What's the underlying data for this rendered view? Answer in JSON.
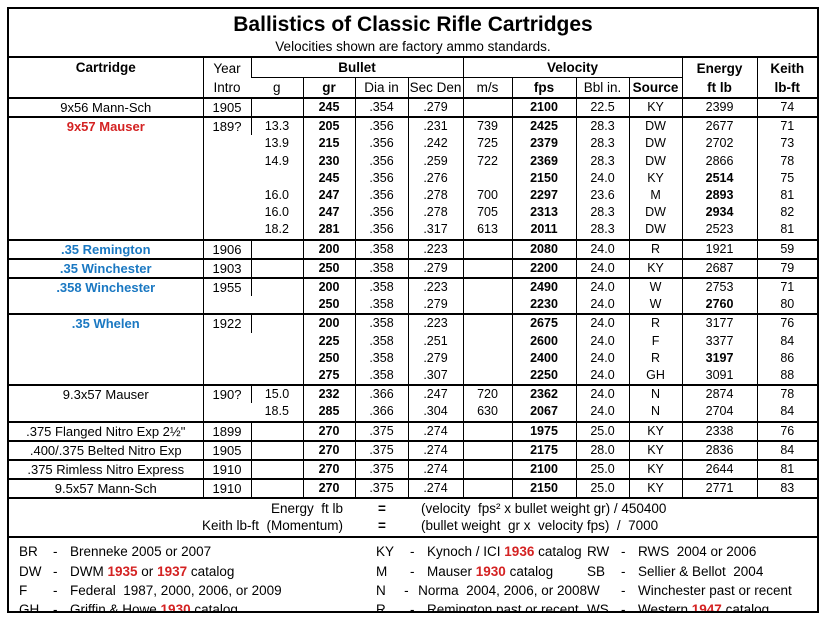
{
  "title": "Ballistics of Classic Rifle Cartridges",
  "subtitle": "Velocities shown are factory ammo standards.",
  "colors": {
    "red": "#d42222",
    "blue": "#1a78c2"
  },
  "columns": {
    "cartridge": "Cartridge",
    "year_line1": "Year",
    "year_line2": "Intro",
    "bullet_group": "Bullet",
    "velocity_group": "Velocity",
    "g": "g",
    "gr": "gr",
    "dia": "Dia in",
    "sec_den": "Sec Den",
    "ms": "m/s",
    "fps": "fps",
    "bbl": "Bbl in.",
    "source": "Source",
    "energy_line1": "Energy",
    "energy_line2": "ft lb",
    "keith_line1": "Keith",
    "keith_line2": "lb-ft"
  },
  "groups": [
    {
      "name": "9x56 Mann-Sch",
      "year": "1905",
      "style": "plain",
      "rows": [
        {
          "g": "",
          "gr": "245",
          "dia": ".354",
          "sd": ".279",
          "ms": "",
          "fps": "2100",
          "bbl": "22.5",
          "src": "KY",
          "en": "2399",
          "enb": false,
          "k": "74"
        }
      ]
    },
    {
      "name": "9x57 Mauser",
      "year": "189?",
      "style": "red",
      "rows": [
        {
          "g": "13.3",
          "gr": "205",
          "dia": ".356",
          "sd": ".231",
          "ms": "739",
          "fps": "2425",
          "bbl": "28.3",
          "src": "DW",
          "en": "2677",
          "enb": false,
          "k": "71"
        },
        {
          "g": "13.9",
          "gr": "215",
          "dia": ".356",
          "sd": ".242",
          "ms": "725",
          "fps": "2379",
          "bbl": "28.3",
          "src": "DW",
          "en": "2702",
          "enb": false,
          "k": "73"
        },
        {
          "g": "14.9",
          "gr": "230",
          "dia": ".356",
          "sd": ".259",
          "ms": "722",
          "fps": "2369",
          "bbl": "28.3",
          "src": "DW",
          "en": "2866",
          "enb": false,
          "k": "78"
        },
        {
          "g": "",
          "gr": "245",
          "dia": ".356",
          "sd": ".276",
          "ms": "",
          "fps": "2150",
          "bbl": "24.0",
          "src": "KY",
          "en": "2514",
          "enb": true,
          "k": "75"
        },
        {
          "g": "16.0",
          "gr": "247",
          "dia": ".356",
          "sd": ".278",
          "ms": "700",
          "fps": "2297",
          "bbl": "23.6",
          "src": "M",
          "en": "2893",
          "enb": true,
          "k": "81"
        },
        {
          "g": "16.0",
          "gr": "247",
          "dia": ".356",
          "sd": ".278",
          "ms": "705",
          "fps": "2313",
          "bbl": "28.3",
          "src": "DW",
          "en": "2934",
          "enb": true,
          "k": "82"
        },
        {
          "g": "18.2",
          "gr": "281",
          "dia": ".356",
          "sd": ".317",
          "ms": "613",
          "fps": "2011",
          "bbl": "28.3",
          "src": "DW",
          "en": "2523",
          "enb": false,
          "k": "81"
        }
      ]
    },
    {
      "name": ".35 Remington",
      "year": "1906",
      "style": "blue",
      "rows": [
        {
          "g": "",
          "gr": "200",
          "dia": ".358",
          "sd": ".223",
          "ms": "",
          "fps": "2080",
          "bbl": "24.0",
          "src": "R",
          "en": "1921",
          "enb": false,
          "k": "59"
        }
      ]
    },
    {
      "name": ".35 Winchester",
      "year": "1903",
      "style": "blue",
      "rows": [
        {
          "g": "",
          "gr": "250",
          "dia": ".358",
          "sd": ".279",
          "ms": "",
          "fps": "2200",
          "bbl": "24.0",
          "src": "KY",
          "en": "2687",
          "enb": false,
          "k": "79"
        }
      ]
    },
    {
      "name": ".358 Winchester",
      "year": "1955",
      "style": "blue",
      "rows": [
        {
          "g": "",
          "gr": "200",
          "dia": ".358",
          "sd": ".223",
          "ms": "",
          "fps": "2490",
          "bbl": "24.0",
          "src": "W",
          "en": "2753",
          "enb": false,
          "k": "71"
        },
        {
          "g": "",
          "gr": "250",
          "dia": ".358",
          "sd": ".279",
          "ms": "",
          "fps": "2230",
          "bbl": "24.0",
          "src": "W",
          "en": "2760",
          "enb": true,
          "k": "80"
        }
      ]
    },
    {
      "name": ".35 Whelen",
      "year": "1922",
      "style": "blue",
      "rows": [
        {
          "g": "",
          "gr": "200",
          "dia": ".358",
          "sd": ".223",
          "ms": "",
          "fps": "2675",
          "bbl": "24.0",
          "src": "R",
          "en": "3177",
          "enb": false,
          "k": "76"
        },
        {
          "g": "",
          "gr": "225",
          "dia": ".358",
          "sd": ".251",
          "ms": "",
          "fps": "2600",
          "bbl": "24.0",
          "src": "F",
          "en": "3377",
          "enb": false,
          "k": "84"
        },
        {
          "g": "",
          "gr": "250",
          "dia": ".358",
          "sd": ".279",
          "ms": "",
          "fps": "2400",
          "bbl": "24.0",
          "src": "R",
          "en": "3197",
          "enb": true,
          "k": "86"
        },
        {
          "g": "",
          "gr": "275",
          "dia": ".358",
          "sd": ".307",
          "ms": "",
          "fps": "2250",
          "bbl": "24.0",
          "src": "GH",
          "en": "3091",
          "enb": false,
          "k": "88"
        }
      ]
    },
    {
      "name": "9.3x57 Mauser",
      "year": "190?",
      "style": "plain",
      "rows": [
        {
          "g": "15.0",
          "gr": "232",
          "dia": ".366",
          "sd": ".247",
          "ms": "720",
          "fps": "2362",
          "bbl": "24.0",
          "src": "N",
          "en": "2874",
          "enb": false,
          "k": "78"
        },
        {
          "g": "18.5",
          "gr": "285",
          "dia": ".366",
          "sd": ".304",
          "ms": "630",
          "fps": "2067",
          "bbl": "24.0",
          "src": "N",
          "en": "2704",
          "enb": false,
          "k": "84"
        }
      ]
    },
    {
      "name": ".375 Flanged Nitro Exp  2½\"",
      "year": "1899",
      "style": "plain",
      "rows": [
        {
          "g": "",
          "gr": "270",
          "dia": ".375",
          "sd": ".274",
          "ms": "",
          "fps": "1975",
          "bbl": "25.0",
          "src": "KY",
          "en": "2338",
          "enb": false,
          "k": "76"
        }
      ]
    },
    {
      "name": ".400/.375 Belted Nitro Exp",
      "year": "1905",
      "style": "plain",
      "rows": [
        {
          "g": "",
          "gr": "270",
          "dia": ".375",
          "sd": ".274",
          "ms": "",
          "fps": "2175",
          "bbl": "28.0",
          "src": "KY",
          "en": "2836",
          "enb": false,
          "k": "84"
        }
      ]
    },
    {
      "name": ".375 Rimless Nitro Express",
      "year": "1910",
      "style": "plain",
      "rows": [
        {
          "g": "",
          "gr": "270",
          "dia": ".375",
          "sd": ".274",
          "ms": "",
          "fps": "2100",
          "bbl": "25.0",
          "src": "KY",
          "en": "2644",
          "enb": false,
          "k": "81"
        }
      ]
    },
    {
      "name": "9.5x57 Mann-Sch",
      "year": "1910",
      "style": "plain",
      "rows": [
        {
          "g": "",
          "gr": "270",
          "dia": ".375",
          "sd": ".274",
          "ms": "",
          "fps": "2150",
          "bbl": "25.0",
          "src": "KY",
          "en": "2771",
          "enb": false,
          "k": "83"
        }
      ]
    }
  ],
  "formulas": [
    {
      "label": "Energy  ft lb",
      "eq": "=",
      "expr": "(velocity  fps² x bullet weight gr) / 450400"
    },
    {
      "label": "Keith lb-ft  (Momentum)",
      "eq": "=",
      "expr": "(bullet weight  gr x  velocity fps)  /  7000"
    }
  ],
  "legend": [
    {
      "code": "BR",
      "text": "Brenneke 2005 or 2007"
    },
    {
      "code": "KY",
      "text": "Kynoch / ICI **1936** catalog"
    },
    {
      "code": "RW",
      "text": "RWS  2004 or 2006"
    },
    {
      "code": "DW",
      "text": "DWM **1935** or **1937** catalog"
    },
    {
      "code": "M",
      "text": "Mauser **1930** catalog"
    },
    {
      "code": "SB",
      "text": "Sellier & Bellot  2004"
    },
    {
      "code": "F",
      "text": "Federal  1987, 2000, 2006, or 2009"
    },
    {
      "code": "N",
      "text": "Norma  2004, 2006, or 2008"
    },
    {
      "code": "W",
      "text": "Winchester past or recent"
    },
    {
      "code": "GH",
      "text": "Griffin & Howe **1930** catalog"
    },
    {
      "code": "R",
      "text": "Remington past or recent"
    },
    {
      "code": "WS",
      "text": "Western **1947** catalog"
    }
  ]
}
